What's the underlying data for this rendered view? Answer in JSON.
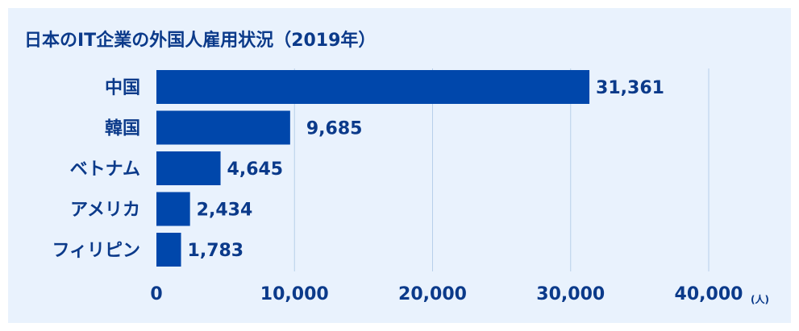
{
  "chart_data": {
    "type": "bar",
    "orientation": "horizontal",
    "title": "日本のIT企業の外国人雇用状況（2019年）",
    "categories": [
      "中国",
      "韓国",
      "ベトナム",
      "アメリカ",
      "フィリピン"
    ],
    "values": [
      31361,
      9685,
      4645,
      2434,
      1783
    ],
    "value_labels": [
      "31,361",
      "9,685",
      "4,645",
      "2,434",
      "1,783"
    ],
    "xlim": [
      0,
      40000
    ],
    "x_ticks": [
      0,
      10000,
      20000,
      30000,
      40000
    ],
    "x_tick_labels": [
      "0",
      "10,000",
      "20,000",
      "30,000",
      "40,000"
    ],
    "x_unit": "(人)",
    "grid": "vertical",
    "bar_color": "#0047ab",
    "grid_color": "#b8cfea",
    "text_color": "#0b3a8a",
    "background": "#e9f2fd"
  }
}
